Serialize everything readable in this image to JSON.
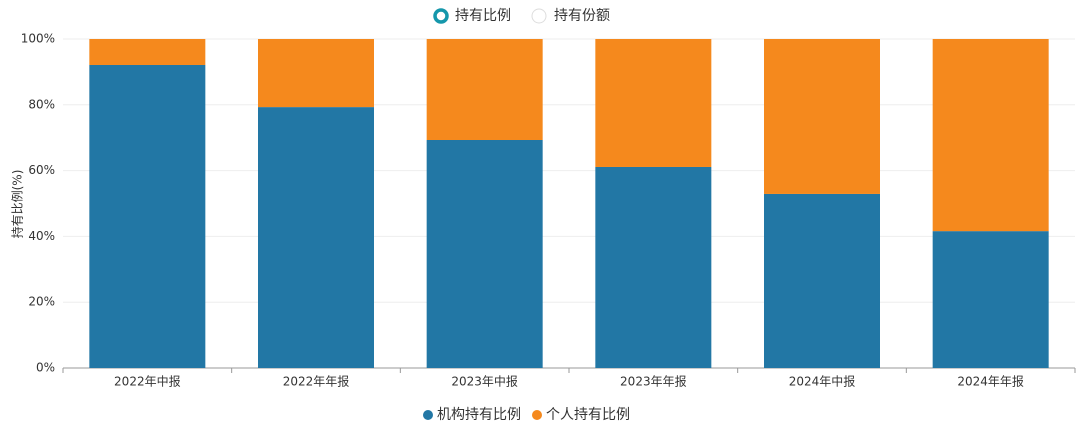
{
  "controls": {
    "options": [
      "持有比例",
      "持有份额"
    ],
    "selected": 0
  },
  "chart_data": {
    "type": "stacked_bar",
    "y_label": "持有比例(%)",
    "categories": [
      "2022年中报",
      "2022年年报",
      "2023年中报",
      "2023年年报",
      "2024年中报",
      "2024年年报"
    ],
    "series": [
      {
        "name": "机构持有比例",
        "color": "#2277a5",
        "values": [
          92.1,
          79.3,
          69.3,
          61.1,
          52.9,
          41.6
        ]
      },
      {
        "name": "个人持有比例",
        "color": "#f5891d",
        "values": [
          7.9,
          20.7,
          30.7,
          38.9,
          47.1,
          58.4
        ]
      }
    ],
    "ylim": [
      0,
      100
    ],
    "yticks": [
      {
        "value": 0,
        "label": "0%"
      },
      {
        "value": 20,
        "label": "20%"
      },
      {
        "value": 40,
        "label": "40%"
      },
      {
        "value": 60,
        "label": "60%"
      },
      {
        "value": 80,
        "label": "80%"
      },
      {
        "value": 100,
        "label": "100%"
      }
    ],
    "grid": true
  }
}
